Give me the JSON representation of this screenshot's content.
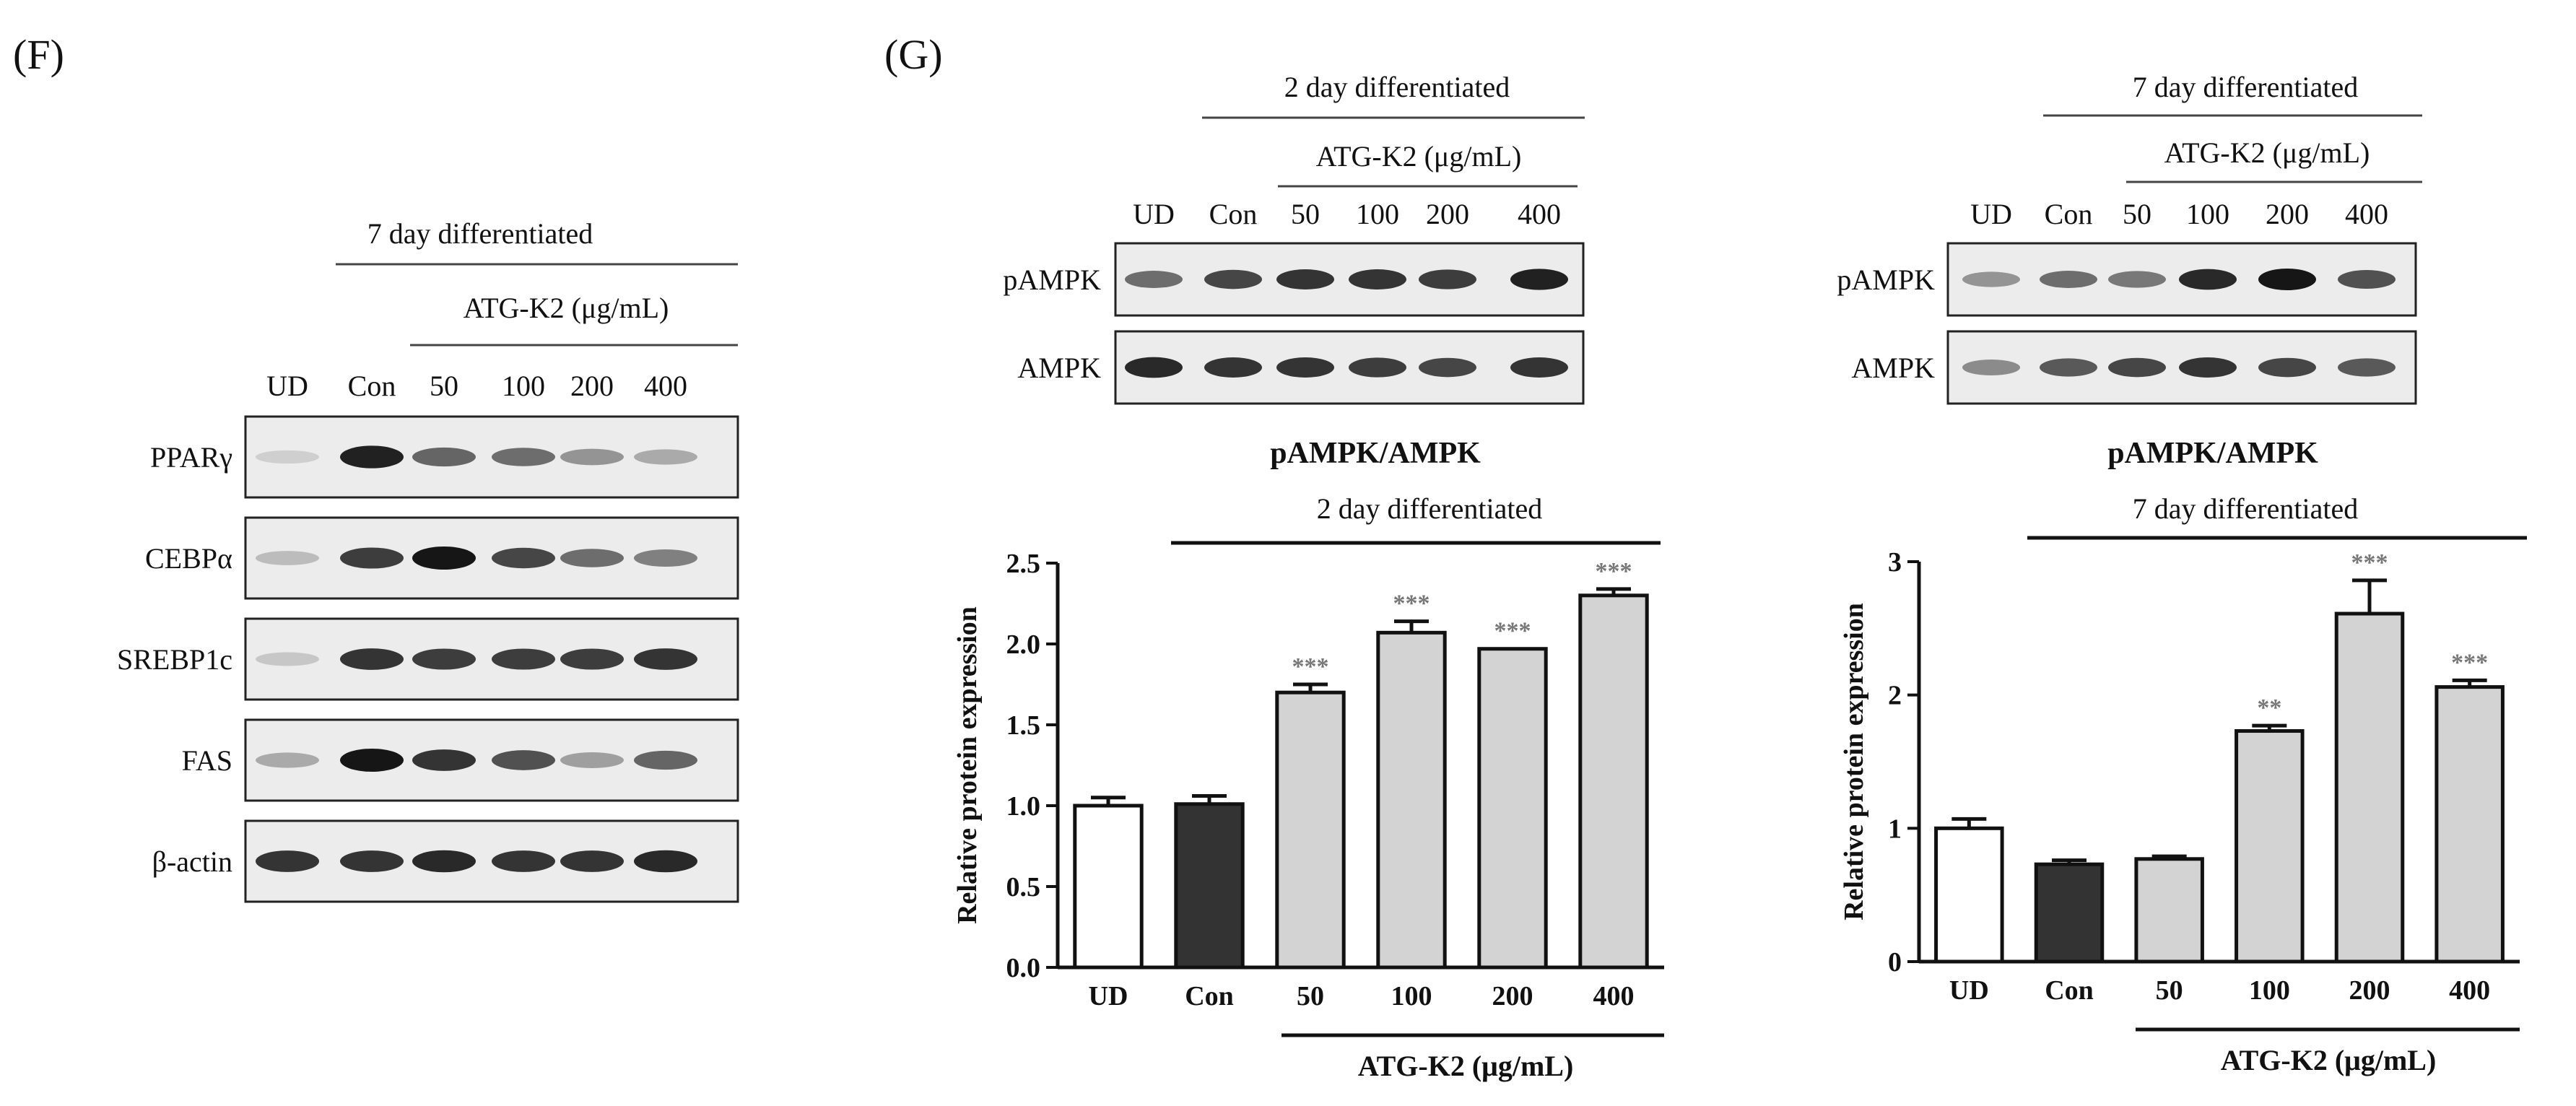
{
  "panels": {
    "F": {
      "label": "(F)",
      "title": "7 day differentiated",
      "treatment": "ATG-K2 (μg/mL)",
      "lanes": [
        "UD",
        "Con",
        "50",
        "100",
        "200",
        "400"
      ],
      "proteins": [
        "PPARγ",
        "CEBPα",
        "SREBP1c",
        "FAS",
        "β-actin"
      ],
      "band_intensity": [
        [
          0.05,
          0.95,
          0.6,
          0.55,
          0.35,
          0.25
        ],
        [
          0.15,
          0.8,
          1.0,
          0.75,
          0.55,
          0.45
        ],
        [
          0.1,
          0.85,
          0.8,
          0.8,
          0.8,
          0.85
        ],
        [
          0.25,
          1.0,
          0.85,
          0.7,
          0.3,
          0.6
        ],
        [
          0.85,
          0.85,
          0.9,
          0.85,
          0.85,
          0.9
        ]
      ]
    },
    "G": {
      "label": "(G)",
      "blot_left": {
        "title": "2 day differentiated",
        "treatment": "ATG-K2 (μg/mL)",
        "lanes": [
          "UD",
          "Con",
          "50",
          "100",
          "200",
          "400"
        ],
        "proteins": [
          "pAMPK",
          "AMPK"
        ],
        "band_intensity": [
          [
            0.55,
            0.75,
            0.85,
            0.85,
            0.8,
            0.95
          ],
          [
            0.9,
            0.85,
            0.85,
            0.8,
            0.75,
            0.85
          ]
        ]
      },
      "blot_right": {
        "title": "7 day differentiated",
        "treatment": "ATG-K2 (μg/mL)",
        "lanes": [
          "UD",
          "Con",
          "50",
          "100",
          "200",
          "400"
        ],
        "proteins": [
          "pAMPK",
          "AMPK"
        ],
        "band_intensity": [
          [
            0.35,
            0.55,
            0.5,
            0.9,
            1.0,
            0.7
          ],
          [
            0.4,
            0.65,
            0.75,
            0.85,
            0.75,
            0.65
          ]
        ]
      }
    }
  },
  "chart_data": [
    {
      "type": "bar",
      "title": "pAMPK/AMPK",
      "group_label": "2 day differentiated",
      "categories": [
        "UD",
        "Con",
        "50",
        "100",
        "200",
        "400"
      ],
      "values": [
        1.0,
        1.01,
        1.7,
        2.07,
        1.97,
        2.3
      ],
      "errors": [
        0.05,
        0.05,
        0.05,
        0.07,
        0.0,
        0.04
      ],
      "significance": [
        "",
        "",
        "***",
        "***",
        "***",
        "***"
      ],
      "bar_colors": [
        "#ffffff",
        "#333333",
        "#d3d3d3",
        "#d3d3d3",
        "#d3d3d3",
        "#d3d3d3"
      ],
      "ylabel": "Relative protein expression",
      "xlabel": "ATG-K2 (μg/mL)",
      "ylim": [
        0,
        2.5
      ],
      "yticks": [
        "0.0",
        "0.5",
        "1.0",
        "1.5",
        "2.0",
        "2.5"
      ]
    },
    {
      "type": "bar",
      "title": "pAMPK/AMPK",
      "group_label": "7 day differentiated",
      "categories": [
        "UD",
        "Con",
        "50",
        "100",
        "200",
        "400"
      ],
      "values": [
        1.0,
        0.73,
        0.77,
        1.73,
        2.61,
        2.06
      ],
      "errors": [
        0.07,
        0.03,
        0.02,
        0.04,
        0.25,
        0.05
      ],
      "significance": [
        "",
        "",
        "",
        "**",
        "***",
        "***"
      ],
      "bar_colors": [
        "#ffffff",
        "#333333",
        "#d3d3d3",
        "#d3d3d3",
        "#d3d3d3",
        "#d3d3d3"
      ],
      "ylabel": "Relative protein expression",
      "xlabel": "ATG-K2 (μg/mL)",
      "ylim": [
        0,
        3
      ],
      "yticks": [
        "0",
        "1",
        "2",
        "3"
      ]
    }
  ]
}
